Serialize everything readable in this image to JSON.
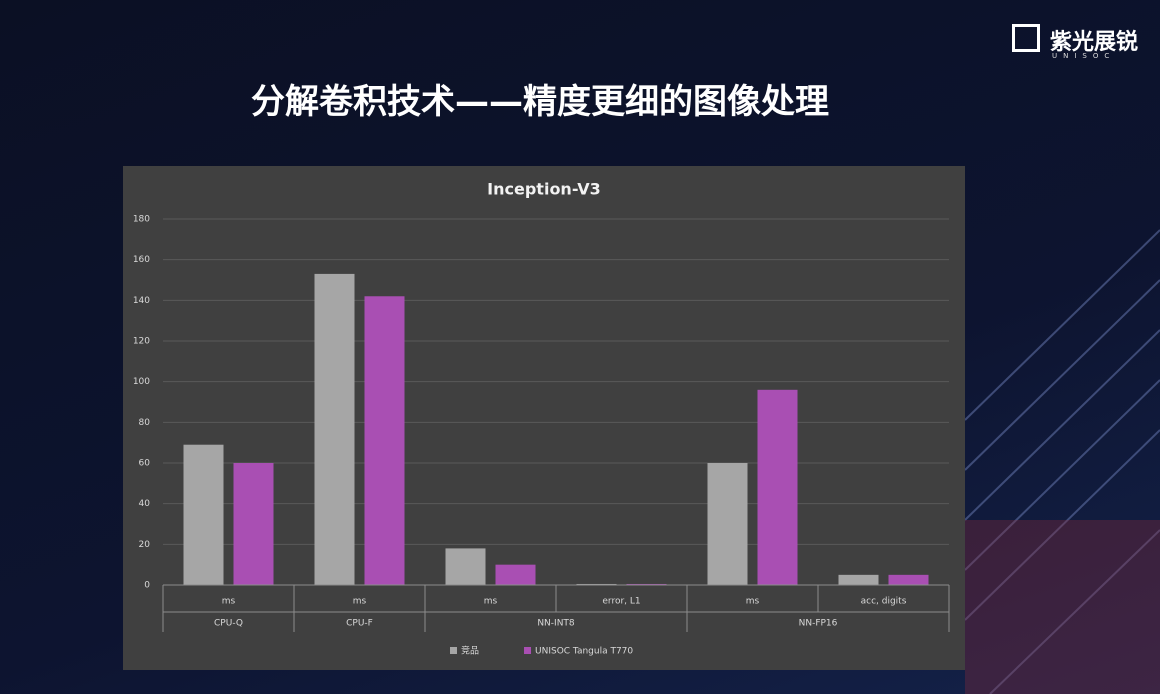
{
  "header": {
    "title": "分解卷积技术——精度更细的图像处理",
    "logo": "紫光展锐",
    "logo_sub": "UNISOC"
  },
  "chart_data": {
    "type": "bar",
    "title": "Inception-V3",
    "groups": [
      {
        "label": "CPU-Q",
        "categories": [
          "ms"
        ]
      },
      {
        "label": "CPU-F",
        "categories": [
          "ms"
        ]
      },
      {
        "label": "NN-INT8",
        "categories": [
          "ms",
          "error, L1"
        ]
      },
      {
        "label": "NN-FP16",
        "categories": [
          "ms",
          "acc, digits"
        ]
      }
    ],
    "series": [
      {
        "name": "竞品",
        "color": "#a6a6a6",
        "values": [
          69,
          153,
          18,
          0.5,
          60,
          5
        ]
      },
      {
        "name": "UNISOC Tangula T770",
        "color": "#a94fb3",
        "values": [
          60,
          142,
          10,
          0.5,
          96,
          5
        ]
      }
    ],
    "ylim": [
      0,
      180
    ],
    "yticks": [
      0,
      20,
      40,
      60,
      80,
      100,
      120,
      140,
      160,
      180
    ],
    "grid": true,
    "legend": "bottom"
  }
}
